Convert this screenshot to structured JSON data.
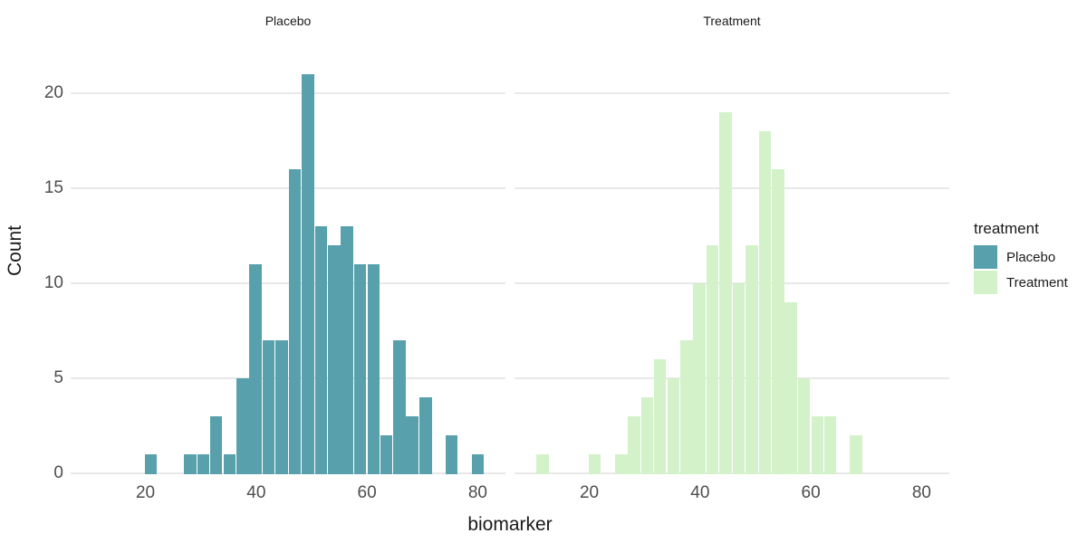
{
  "chart_data": {
    "type": "bar",
    "subtype": "faceted-histogram",
    "title": "",
    "xlabel": "biomarker",
    "ylabel": "Count",
    "x_ticks": [
      20,
      40,
      60,
      80
    ],
    "y_ticks": [
      0,
      5,
      10,
      15,
      20
    ],
    "xlim": [
      6.5,
      85
    ],
    "ylim": [
      0,
      22
    ],
    "binwidth": 2.36,
    "grid": "horizontal-major-only",
    "colors": {
      "placebo_fill": "#58A1AC",
      "treatment_fill": "#D3F2CA",
      "gridline": "#E8E8E8",
      "tick_text": "#4D4D4D",
      "title_text": "#1A1A1A",
      "background": "#FFFFFF"
    },
    "facets": [
      {
        "label": "Placebo",
        "fill": "#58A1AC",
        "bars": [
          [
            19.8,
            1
          ],
          [
            26.9,
            1
          ],
          [
            29.3,
            1
          ],
          [
            31.6,
            3
          ],
          [
            34.0,
            1
          ],
          [
            36.4,
            5
          ],
          [
            38.7,
            11
          ],
          [
            41.1,
            7
          ],
          [
            43.4,
            7
          ],
          [
            45.8,
            16
          ],
          [
            48.2,
            21
          ],
          [
            50.5,
            13
          ],
          [
            52.9,
            12
          ],
          [
            55.2,
            13
          ],
          [
            57.6,
            11
          ],
          [
            60.0,
            11
          ],
          [
            62.3,
            2
          ],
          [
            64.7,
            7
          ],
          [
            67.0,
            3
          ],
          [
            69.4,
            4
          ],
          [
            74.1,
            2
          ],
          [
            78.8,
            1
          ]
        ]
      },
      {
        "label": "Treatment",
        "fill": "#D3F2CA",
        "bars": [
          [
            10.4,
            1
          ],
          [
            19.8,
            1
          ],
          [
            24.6,
            1
          ],
          [
            26.9,
            3
          ],
          [
            29.3,
            4
          ],
          [
            31.6,
            6
          ],
          [
            34.0,
            5
          ],
          [
            36.4,
            7
          ],
          [
            38.7,
            10
          ],
          [
            41.1,
            12
          ],
          [
            43.4,
            19
          ],
          [
            45.8,
            10
          ],
          [
            48.2,
            12
          ],
          [
            50.5,
            18
          ],
          [
            52.9,
            16
          ],
          [
            55.2,
            9
          ],
          [
            57.6,
            5
          ],
          [
            60.0,
            3
          ],
          [
            62.3,
            3
          ],
          [
            67.0,
            2
          ]
        ]
      }
    ],
    "legend": {
      "title": "treatment",
      "position": "right",
      "items": [
        {
          "label": "Placebo",
          "color": "#58A1AC"
        },
        {
          "label": "Treatment",
          "color": "#D3F2CA"
        }
      ]
    }
  }
}
